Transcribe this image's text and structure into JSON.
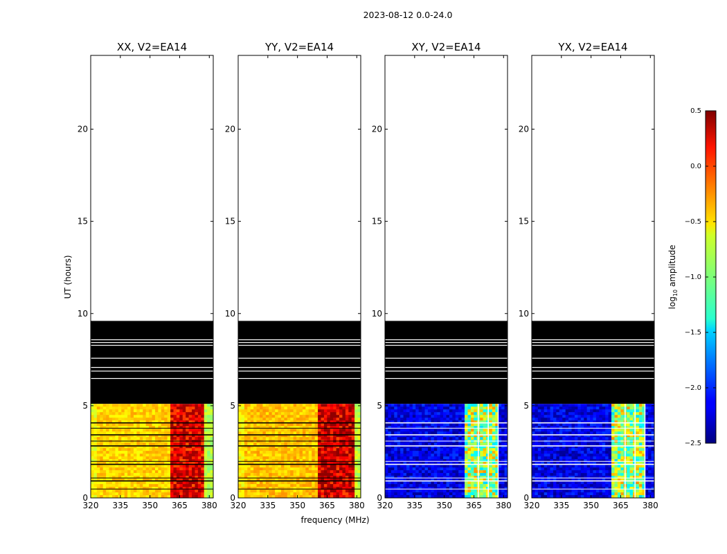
{
  "figure": {
    "suptitle": "2023-08-12 0.0-24.0"
  },
  "colorbar": {
    "label_main": "log",
    "label_sub": "10",
    "label_tail": " amplitude",
    "min": -2.5,
    "max": 0.5,
    "ticks": [
      0.5,
      0.0,
      -0.5,
      -1.0,
      -1.5,
      -2.0,
      -2.5
    ],
    "tick_labels": [
      "0.5",
      "0.0",
      "−0.5",
      "−1.0",
      "−1.5",
      "−2.0",
      "−2.5"
    ],
    "colormap": "jet"
  },
  "chart_data": [
    {
      "type": "heatmap",
      "title": "XX, V2=EA14",
      "xlabel": "",
      "ylabel": "UT (hours)",
      "xlim": [
        320,
        382
      ],
      "ylim": [
        0,
        24
      ],
      "x_ticks": [
        320,
        335,
        350,
        365,
        380
      ],
      "y_ticks": [
        0,
        5,
        10,
        15,
        20
      ],
      "flagged_band_hours": [
        5.1,
        9.6
      ],
      "data_band_hours": [
        0,
        5.1
      ],
      "bright_channels_mhz": [
        [
          361,
          377
        ]
      ],
      "band_amplitude_log10": {
        "typical": -0.5,
        "bright": 0.1
      }
    },
    {
      "type": "heatmap",
      "title": "YY, V2=EA14",
      "xlabel": "frequency (MHz)",
      "ylabel": "",
      "xlim": [
        320,
        382
      ],
      "ylim": [
        0,
        24
      ],
      "x_ticks": [
        320,
        335,
        350,
        365,
        380
      ],
      "y_ticks": [
        0,
        5,
        10,
        15,
        20
      ],
      "flagged_band_hours": [
        5.1,
        9.6
      ],
      "data_band_hours": [
        0,
        5.1
      ],
      "bright_channels_mhz": [
        [
          361,
          379
        ]
      ],
      "band_amplitude_log10": {
        "typical": -0.45,
        "bright": 0.15
      }
    },
    {
      "type": "heatmap",
      "title": "XY, V2=EA14",
      "xlabel": "",
      "ylabel": "",
      "xlim": [
        320,
        382
      ],
      "ylim": [
        0,
        24
      ],
      "x_ticks": [
        320,
        335,
        350,
        365,
        380
      ],
      "y_ticks": [
        0,
        5,
        10,
        15,
        20
      ],
      "flagged_band_hours": [
        5.1,
        9.6
      ],
      "data_band_hours": [
        0,
        5.1
      ],
      "bright_channels_mhz": [
        [
          361,
          378
        ]
      ],
      "band_amplitude_log10": {
        "typical": -2.2,
        "bright": -0.9
      }
    },
    {
      "type": "heatmap",
      "title": "YX, V2=EA14",
      "xlabel": "",
      "ylabel": "",
      "xlim": [
        320,
        382
      ],
      "ylim": [
        0,
        24
      ],
      "x_ticks": [
        320,
        335,
        350,
        365,
        380
      ],
      "y_ticks": [
        0,
        5,
        10,
        15,
        20
      ],
      "flagged_band_hours": [
        5.1,
        9.6
      ],
      "data_band_hours": [
        0,
        5.1
      ],
      "bright_channels_mhz": [
        [
          361,
          378
        ]
      ],
      "band_amplitude_log10": {
        "typical": -2.2,
        "bright": -0.9
      }
    }
  ]
}
